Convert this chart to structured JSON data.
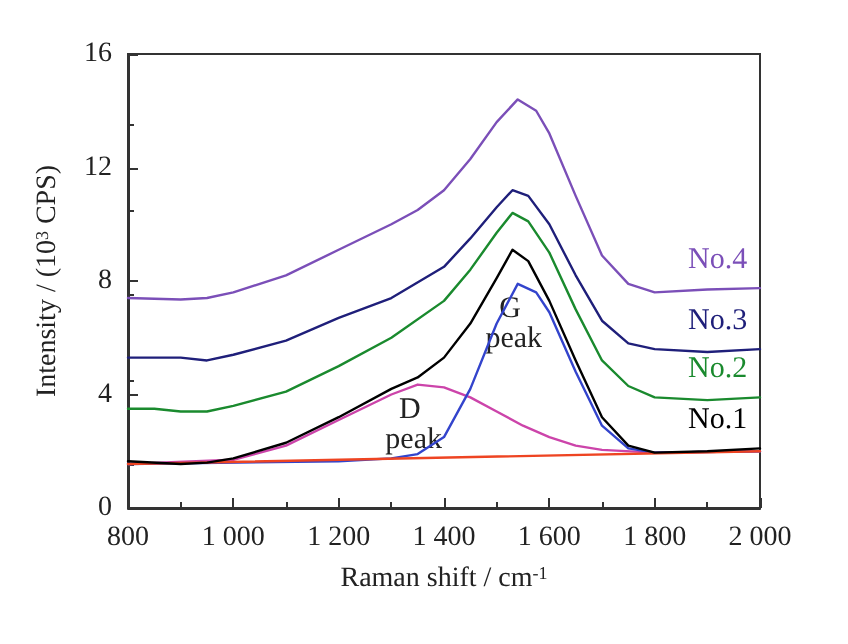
{
  "chart_data": {
    "type": "line",
    "xlabel": "Raman shift / cm$^{-1}$",
    "ylabel": "Intensity / (10$^{3}$ CPS)",
    "xlim": [
      800,
      2000
    ],
    "ylim": [
      0,
      16
    ],
    "xticks": [
      800,
      {
        "value": 1000,
        "label": "1 000"
      },
      {
        "value": 1200,
        "label": "1 200"
      },
      {
        "value": 1400,
        "label": "1 400"
      },
      {
        "value": 1600,
        "label": "1 600"
      },
      {
        "value": 1800,
        "label": "1 800"
      },
      {
        "value": 2000,
        "label": "2 000"
      }
    ],
    "yticks": [
      0,
      4,
      8,
      12,
      16
    ],
    "grid": false,
    "legend": false,
    "marker": "none",
    "line_style": "solid",
    "annotations": [
      {
        "text": "D peak",
        "x": 1350,
        "y": 4.35
      },
      {
        "text": "G peak",
        "x": 1540,
        "y": 7.9
      }
    ],
    "series": [
      {
        "name": "No.1",
        "color": "#000000",
        "x": [
          800,
          900,
          950,
          1000,
          1100,
          1200,
          1300,
          1350,
          1400,
          1450,
          1500,
          1530,
          1560,
          1600,
          1650,
          1700,
          1750,
          1800,
          1900,
          2000
        ],
        "values": [
          1.65,
          1.55,
          1.6,
          1.75,
          2.3,
          3.2,
          4.2,
          4.6,
          5.3,
          6.5,
          8.1,
          9.1,
          8.7,
          7.3,
          5.2,
          3.2,
          2.2,
          1.95,
          2.0,
          2.1
        ]
      },
      {
        "name": "No.2",
        "color": "#1a8a2e",
        "x": [
          800,
          850,
          900,
          950,
          1000,
          1100,
          1200,
          1300,
          1400,
          1450,
          1500,
          1530,
          1560,
          1600,
          1650,
          1700,
          1750,
          1800,
          1900,
          2000
        ],
        "values": [
          3.5,
          3.5,
          3.4,
          3.4,
          3.6,
          4.1,
          5.0,
          6.0,
          7.3,
          8.4,
          9.7,
          10.4,
          10.1,
          9.0,
          7.0,
          5.2,
          4.3,
          3.9,
          3.8,
          3.9
        ]
      },
      {
        "name": "No.3",
        "color": "#1f1f7a",
        "x": [
          800,
          900,
          950,
          1000,
          1100,
          1200,
          1300,
          1400,
          1450,
          1500,
          1530,
          1560,
          1600,
          1650,
          1700,
          1750,
          1800,
          1900,
          2000
        ],
        "values": [
          5.3,
          5.3,
          5.2,
          5.4,
          5.9,
          6.7,
          7.4,
          8.5,
          9.5,
          10.6,
          11.2,
          11.0,
          10.0,
          8.2,
          6.6,
          5.8,
          5.6,
          5.5,
          5.6
        ]
      },
      {
        "name": "No.4",
        "color": "#7b4fb8",
        "x": [
          800,
          900,
          950,
          1000,
          1100,
          1200,
          1300,
          1350,
          1400,
          1450,
          1500,
          1540,
          1575,
          1600,
          1650,
          1700,
          1750,
          1800,
          1900,
          2000
        ],
        "values": [
          7.4,
          7.35,
          7.4,
          7.6,
          8.2,
          9.1,
          10.0,
          10.5,
          11.2,
          12.3,
          13.6,
          14.4,
          14.0,
          13.2,
          11.0,
          8.9,
          7.9,
          7.6,
          7.7,
          7.75
        ]
      },
      {
        "color": "#cc44aa",
        "x": [
          800,
          1000,
          1100,
          1200,
          1300,
          1350,
          1400,
          1450,
          1500,
          1550,
          1600,
          1650,
          1700,
          1800,
          2000
        ],
        "values": [
          1.55,
          1.7,
          2.2,
          3.1,
          4.0,
          4.35,
          4.25,
          3.9,
          3.4,
          2.9,
          2.5,
          2.2,
          2.05,
          1.95,
          2.0
        ]
      },
      {
        "color": "#3344cc",
        "x": [
          800,
          1200,
          1300,
          1350,
          1400,
          1450,
          1500,
          1540,
          1575,
          1600,
          1650,
          1700,
          1750,
          1800,
          2000
        ],
        "values": [
          1.55,
          1.65,
          1.75,
          1.9,
          2.5,
          4.2,
          6.5,
          7.9,
          7.6,
          6.9,
          4.8,
          2.9,
          2.1,
          1.95,
          2.0
        ]
      },
      {
        "color": "#ee4422",
        "x": [
          800,
          2000
        ],
        "values": [
          1.55,
          2.0
        ]
      }
    ]
  }
}
